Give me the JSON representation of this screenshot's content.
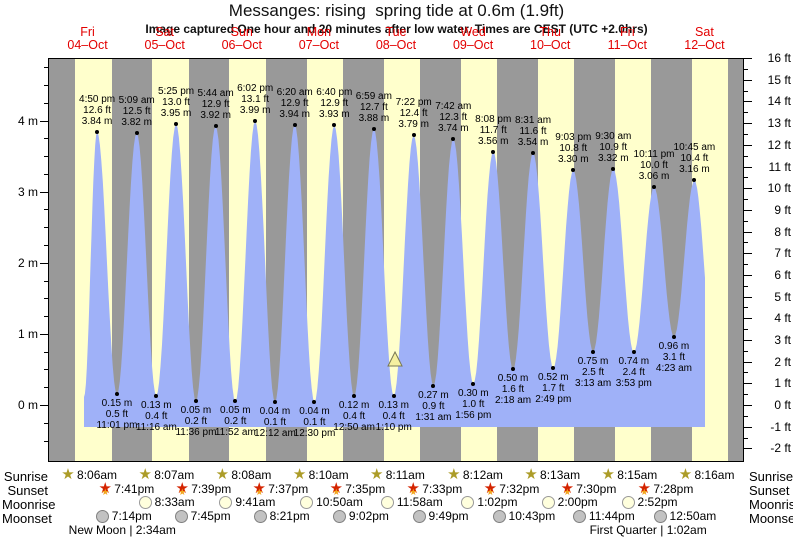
{
  "title": "Messanges: rising  spring tide at 0.6m (1.9ft)",
  "subtitle": "Image captured One hour and 20 minutes after low water. Times are CEST (UTC +2.0hrs)",
  "days": [
    {
      "name": "Fri",
      "date": "04–Oct"
    },
    {
      "name": "Sat",
      "date": "05–Oct"
    },
    {
      "name": "Sun",
      "date": "06–Oct"
    },
    {
      "name": "Mon",
      "date": "07–Oct"
    },
    {
      "name": "Tue",
      "date": "08–Oct"
    },
    {
      "name": "Wed",
      "date": "09–Oct"
    },
    {
      "name": "Thu",
      "date": "10–Oct"
    },
    {
      "name": "Fri",
      "date": "11–Oct"
    },
    {
      "name": "Sat",
      "date": "12–Oct"
    }
  ],
  "chart_data": {
    "type": "area",
    "title": "Messanges: rising  spring tide at 0.6m (1.9ft)",
    "ylabel_left": "meters",
    "ylabel_right": "feet",
    "y_left_tick_labels": [
      "0 m",
      "1 m",
      "2 m",
      "3 m",
      "4 m"
    ],
    "y_left_range_m": [
      -0.8,
      4.9
    ],
    "y_right_range_ft": [
      -2,
      16
    ],
    "grid": false,
    "legend": "none",
    "tide_events": [
      {
        "kind": "high",
        "day": 0,
        "hour": 16.833,
        "time": "4:50 pm",
        "ft": "12.6 ft",
        "m": "3.84 m",
        "meters": 3.84
      },
      {
        "kind": "low",
        "day": 0,
        "hour": 23.017,
        "time": "11:01 pm",
        "ft": "0.5 ft",
        "m": "0.15 m",
        "meters": 0.15
      },
      {
        "kind": "high",
        "day": 1,
        "hour": 5.15,
        "time": "5:09 am",
        "ft": "12.5 ft",
        "m": "3.82 m",
        "meters": 3.82
      },
      {
        "kind": "low",
        "day": 1,
        "hour": 11.267,
        "time": "11:16 am",
        "ft": "0.4 ft",
        "m": "0.13 m",
        "meters": 0.13
      },
      {
        "kind": "high",
        "day": 1,
        "hour": 17.417,
        "time": "5:25 pm",
        "ft": "13.0 ft",
        "m": "3.95 m",
        "meters": 3.95
      },
      {
        "kind": "low",
        "day": 1,
        "hour": 23.6,
        "time": "11:36 pm",
        "ft": "0.2 ft",
        "m": "0.05 m",
        "meters": 0.05
      },
      {
        "kind": "high",
        "day": 2,
        "hour": 5.733,
        "time": "5:44 am",
        "ft": "12.9 ft",
        "m": "3.92 m",
        "meters": 3.92
      },
      {
        "kind": "low",
        "day": 2,
        "hour": 11.867,
        "time": "11:52 am",
        "ft": "0.2 ft",
        "m": "0.05 m",
        "meters": 0.05
      },
      {
        "kind": "high",
        "day": 2,
        "hour": 18.033,
        "time": "6:02 pm",
        "ft": "13.1 ft",
        "m": "3.99 m",
        "meters": 3.99
      },
      {
        "kind": "low",
        "day": 3,
        "hour": 0.2,
        "time": "12:12 am",
        "ft": "0.1 ft",
        "m": "0.04 m",
        "meters": 0.04
      },
      {
        "kind": "high",
        "day": 3,
        "hour": 6.333,
        "time": "6:20 am",
        "ft": "12.9 ft",
        "m": "3.94 m",
        "meters": 3.94
      },
      {
        "kind": "low",
        "day": 3,
        "hour": 12.5,
        "time": "12:30 pm",
        "ft": "0.1 ft",
        "m": "0.04 m",
        "meters": 0.04
      },
      {
        "kind": "high",
        "day": 3,
        "hour": 18.667,
        "time": "6:40 pm",
        "ft": "12.9 ft",
        "m": "3.93 m",
        "meters": 3.93
      },
      {
        "kind": "low",
        "day": 4,
        "hour": 0.833,
        "time": "12:50 am",
        "ft": "0.4 ft",
        "m": "0.12 m",
        "meters": 0.12
      },
      {
        "kind": "high",
        "day": 4,
        "hour": 6.983,
        "time": "6:59 am",
        "ft": "12.7 ft",
        "m": "3.88 m",
        "meters": 3.88
      },
      {
        "kind": "low",
        "day": 4,
        "hour": 13.167,
        "time": "1:10 pm",
        "ft": "0.4 ft",
        "m": "0.13 m",
        "meters": 0.13
      },
      {
        "kind": "high",
        "day": 4,
        "hour": 19.367,
        "time": "7:22 pm",
        "ft": "12.4 ft",
        "m": "3.79 m",
        "meters": 3.79
      },
      {
        "kind": "low",
        "day": 5,
        "hour": 1.517,
        "time": "1:31 am",
        "ft": "0.9 ft",
        "m": "0.27 m",
        "meters": 0.27
      },
      {
        "kind": "high",
        "day": 5,
        "hour": 7.7,
        "time": "7:42 am",
        "ft": "12.3 ft",
        "m": "3.74 m",
        "meters": 3.74
      },
      {
        "kind": "low",
        "day": 5,
        "hour": 13.933,
        "time": "1:56 pm",
        "ft": "1.0 ft",
        "m": "0.30 m",
        "meters": 0.3
      },
      {
        "kind": "high",
        "day": 5,
        "hour": 20.133,
        "time": "8:08 pm",
        "ft": "11.7 ft",
        "m": "3.56 m",
        "meters": 3.56
      },
      {
        "kind": "low",
        "day": 6,
        "hour": 2.3,
        "time": "2:18 am",
        "ft": "1.6 ft",
        "m": "0.50 m",
        "meters": 0.5
      },
      {
        "kind": "high",
        "day": 6,
        "hour": 8.517,
        "time": "8:31 am",
        "ft": "11.6 ft",
        "m": "3.54 m",
        "meters": 3.54
      },
      {
        "kind": "low",
        "day": 6,
        "hour": 14.817,
        "time": "2:49 pm",
        "ft": "1.7 ft",
        "m": "0.52 m",
        "meters": 0.52
      },
      {
        "kind": "high",
        "day": 6,
        "hour": 21.05,
        "time": "9:03 pm",
        "ft": "10.8 ft",
        "m": "3.30 m",
        "meters": 3.3
      },
      {
        "kind": "low",
        "day": 7,
        "hour": 3.217,
        "time": "3:13 am",
        "ft": "2.5 ft",
        "m": "0.75 m",
        "meters": 0.75
      },
      {
        "kind": "high",
        "day": 7,
        "hour": 9.5,
        "time": "9:30 am",
        "ft": "10.9 ft",
        "m": "3.32 m",
        "meters": 3.32
      },
      {
        "kind": "low",
        "day": 7,
        "hour": 15.883,
        "time": "3:53 pm",
        "ft": "2.4 ft",
        "m": "0.74 m",
        "meters": 0.74
      },
      {
        "kind": "high",
        "day": 7,
        "hour": 22.183,
        "time": "10:11 pm",
        "ft": "10.0 ft",
        "m": "3.06 m",
        "meters": 3.06
      },
      {
        "kind": "low",
        "day": 8,
        "hour": 4.383,
        "time": "4:23 am",
        "ft": "3.1 ft",
        "m": "0.96 m",
        "meters": 0.96
      },
      {
        "kind": "high",
        "day": 8,
        "hour": 10.75,
        "time": "10:45 am",
        "ft": "10.4 ft",
        "m": "3.16 m",
        "meters": 3.16
      }
    ],
    "capture_marker": {
      "day": 4,
      "hour": 14.5
    }
  },
  "astro": {
    "labels": {
      "sunrise": "Sunrise",
      "sunset": "Sunset",
      "moonrise": "Moonrise",
      "moonset": "Moonset"
    },
    "sunrise": [
      {
        "day": 0,
        "hour": 8.1,
        "time": "8:06am"
      },
      {
        "day": 1,
        "hour": 8.117,
        "time": "8:07am"
      },
      {
        "day": 2,
        "hour": 8.133,
        "time": "8:08am"
      },
      {
        "day": 3,
        "hour": 8.167,
        "time": "8:10am"
      },
      {
        "day": 4,
        "hour": 8.183,
        "time": "8:11am"
      },
      {
        "day": 5,
        "hour": 8.2,
        "time": "8:12am"
      },
      {
        "day": 6,
        "hour": 8.217,
        "time": "8:13am"
      },
      {
        "day": 7,
        "hour": 8.25,
        "time": "8:15am"
      },
      {
        "day": 8,
        "hour": 8.267,
        "time": "8:16am"
      }
    ],
    "sunset": [
      {
        "day": 0,
        "hour": 19.683,
        "time": "7:41pm"
      },
      {
        "day": 1,
        "hour": 19.65,
        "time": "7:39pm"
      },
      {
        "day": 2,
        "hour": 19.617,
        "time": "7:37pm"
      },
      {
        "day": 3,
        "hour": 19.583,
        "time": "7:35pm"
      },
      {
        "day": 4,
        "hour": 19.55,
        "time": "7:33pm"
      },
      {
        "day": 5,
        "hour": 19.533,
        "time": "7:32pm"
      },
      {
        "day": 6,
        "hour": 19.5,
        "time": "7:30pm"
      },
      {
        "day": 7,
        "hour": 19.467,
        "time": "7:28pm"
      }
    ],
    "moonrise": [
      {
        "day": 1,
        "hour": 8.55,
        "time": "8:33am"
      },
      {
        "day": 2,
        "hour": 9.683,
        "time": "9:41am"
      },
      {
        "day": 3,
        "hour": 10.833,
        "time": "10:50am"
      },
      {
        "day": 4,
        "hour": 11.967,
        "time": "11:58am"
      },
      {
        "day": 5,
        "hour": 13.033,
        "time": "1:02pm"
      },
      {
        "day": 6,
        "hour": 14.0,
        "time": "2:00pm"
      },
      {
        "day": 7,
        "hour": 14.867,
        "time": "2:52pm"
      }
    ],
    "moonset": [
      {
        "day": 0,
        "hour": 19.233,
        "time": "7:14pm"
      },
      {
        "day": 1,
        "hour": 19.75,
        "time": "7:45pm"
      },
      {
        "day": 2,
        "hour": 20.35,
        "time": "8:21pm"
      },
      {
        "day": 3,
        "hour": 21.033,
        "time": "9:02pm"
      },
      {
        "day": 4,
        "hour": 21.817,
        "time": "9:49pm"
      },
      {
        "day": 5,
        "hour": 22.717,
        "time": "10:43pm"
      },
      {
        "day": 6,
        "hour": 23.733,
        "time": "11:44pm"
      },
      {
        "day": 8,
        "hour": 0.833,
        "time": "12:50am"
      }
    ],
    "phases": [
      {
        "text": "New Moon | 2:34am",
        "day_pos": 0.95
      },
      {
        "text": "First Quarter | 1:02am",
        "day_pos": 7.77
      }
    ]
  },
  "colors": {
    "night_band": "#999999",
    "day_band": "#ffffcc",
    "tide_fill": "#9fb1f8",
    "day_label_red": "#e30000",
    "axis": "#000000",
    "marker_fill": "#f5f0a0",
    "marker_stroke": "#777755",
    "sunrise_star": "#ac9c28",
    "sunset_star_outer": "#d42300",
    "sunset_star_inner": "#f2a51e",
    "moonrise_circle": "#ffffdd",
    "moonrise_border": "#999999",
    "moonset_circle": "#c2c2c2",
    "moonset_border": "#808080"
  }
}
